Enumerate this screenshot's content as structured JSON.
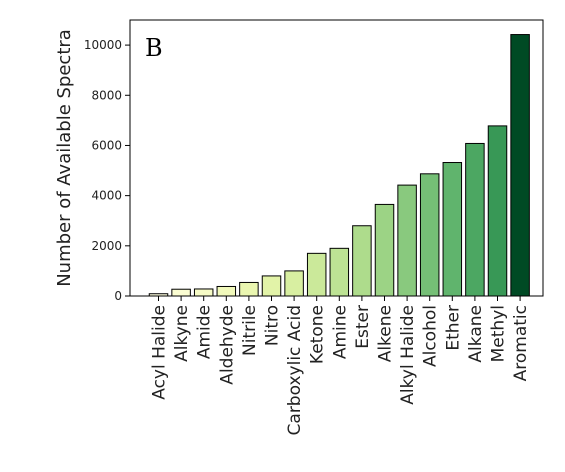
{
  "chart_data": {
    "type": "bar",
    "panel_label": "B",
    "title": "",
    "xlabel": "",
    "ylabel": "Number of Available Spectra",
    "ylim": [
      0,
      11000
    ],
    "yticks": [
      0,
      2000,
      4000,
      6000,
      8000,
      10000
    ],
    "grid": false,
    "categories": [
      "Acyl Halide",
      "Alkyne",
      "Amide",
      "Aldehyde",
      "Nitrile",
      "Nitro",
      "Carboxylic Acid",
      "Ketone",
      "Amine",
      "Ester",
      "Alkene",
      "Alkyl Halide",
      "Alcohol",
      "Ether",
      "Alkane",
      "Methyl",
      "Aromatic"
    ],
    "values": [
      90,
      270,
      280,
      380,
      540,
      800,
      1000,
      1700,
      1900,
      2800,
      3650,
      4420,
      4870,
      5320,
      6080,
      6780,
      10420
    ],
    "colors": [
      "#ffffe0",
      "#fbfdd2",
      "#f6fbc6",
      "#f1f9bb",
      "#eaf6b0",
      "#e2f3a8",
      "#d8efa1",
      "#cbe99a",
      "#bde394",
      "#aedc8c",
      "#9cd385",
      "#89c97e",
      "#75bf76",
      "#60b46d",
      "#4ca762",
      "#389856",
      "#004a24"
    ]
  }
}
